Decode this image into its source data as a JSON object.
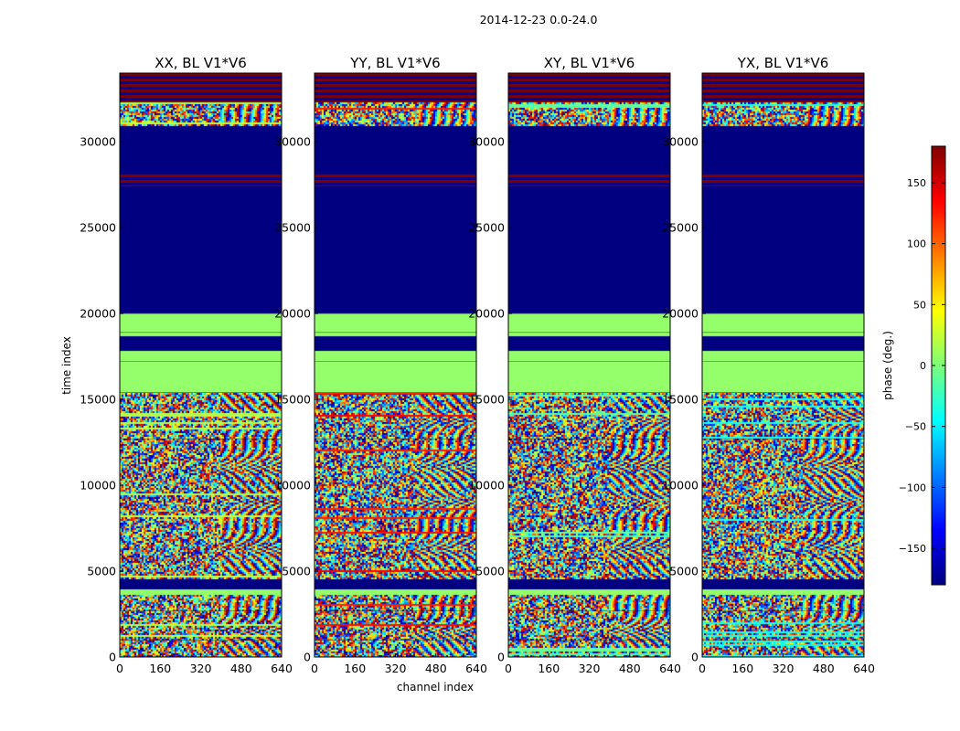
{
  "figure": {
    "suptitle": "2014-12-23 0.0-24.0",
    "xlabel": "channel index",
    "ylabel": "time index",
    "colorbar_label": "phase (deg.)"
  },
  "chart_data": {
    "type": "heatmap",
    "title": "2014-12-23 0.0-24.0",
    "xlabel": "channel index",
    "ylabel": "time index",
    "xlim": [
      0,
      640
    ],
    "ylim": [
      0,
      34000
    ],
    "xticks": [
      0,
      160,
      320,
      480,
      640
    ],
    "yticks": [
      0,
      5000,
      10000,
      15000,
      20000,
      25000,
      30000
    ],
    "panels": [
      {
        "name": "xx",
        "title": "XX, BL V1*V6",
        "seed": 11,
        "low_tone": 0.55
      },
      {
        "name": "yy",
        "title": "YY, BL V1*V6",
        "seed": 23,
        "low_tone": 0.86
      },
      {
        "name": "xy",
        "title": "XY, BL V1*V6",
        "seed": 37,
        "low_tone": 0.47
      },
      {
        "name": "yx",
        "title": "YX, BL V1*V6",
        "seed": 53,
        "low_tone": 0.4
      }
    ],
    "blocks": [
      {
        "from": 0,
        "to": 3600,
        "kind": "noisy"
      },
      {
        "from": 3600,
        "to": 3950,
        "kind": "flat",
        "value": 0.52
      },
      {
        "from": 3950,
        "to": 4500,
        "kind": "flat",
        "value": 0.0
      },
      {
        "from": 4500,
        "to": 15400,
        "kind": "noisy"
      },
      {
        "from": 15400,
        "to": 17800,
        "kind": "flat",
        "value": 0.52
      },
      {
        "from": 17800,
        "to": 18700,
        "kind": "flat",
        "value": 0.0
      },
      {
        "from": 18700,
        "to": 20000,
        "kind": "flat",
        "value": 0.52
      },
      {
        "from": 20000,
        "to": 20200,
        "kind": "flat",
        "value": 0.0
      },
      {
        "from": 20200,
        "to": 27400,
        "kind": "flat",
        "value": 0.0
      },
      {
        "from": 27400,
        "to": 28100,
        "kind": "stripes"
      },
      {
        "from": 28100,
        "to": 30900,
        "kind": "flat",
        "value": 0.0
      },
      {
        "from": 30900,
        "to": 32300,
        "kind": "noisy"
      },
      {
        "from": 32300,
        "to": 34000,
        "kind": "stripes"
      }
    ],
    "colorbar": {
      "colormap": "jet",
      "range": [
        -180,
        180
      ],
      "ticks": [
        -150,
        -100,
        -50,
        0,
        50,
        100,
        150
      ],
      "tick_labels": [
        "−150",
        "−100",
        "−50",
        "0",
        "50",
        "100",
        "150"
      ],
      "label": "phase (deg.)"
    }
  }
}
